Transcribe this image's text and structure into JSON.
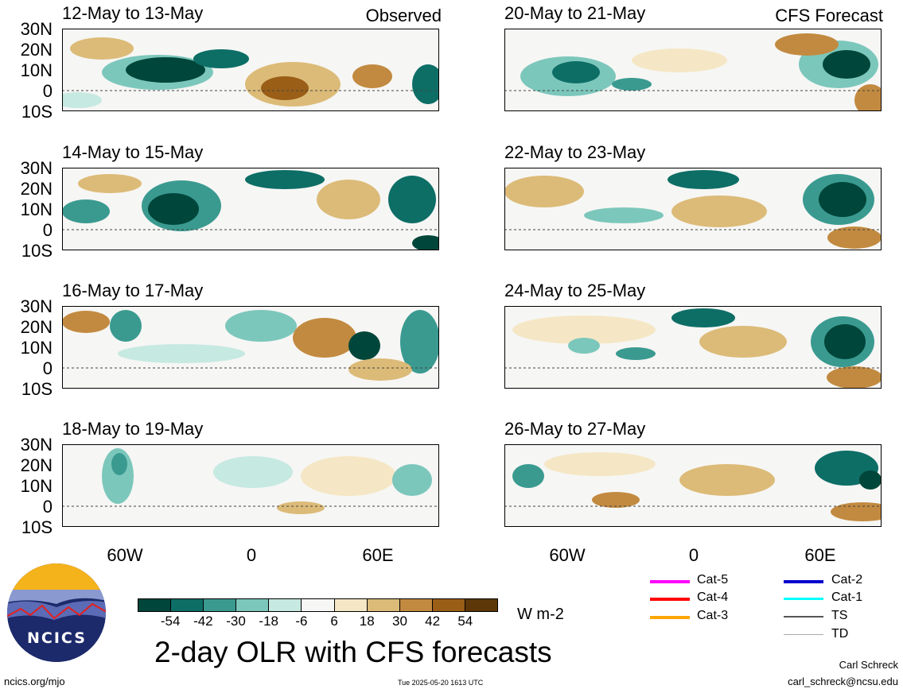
{
  "panels": [
    {
      "title": "12-May to 13-May",
      "tag": "Observed"
    },
    {
      "title": "20-May to 21-May",
      "tag": "CFS Forecast"
    },
    {
      "title": "14-May to 15-May",
      "tag": ""
    },
    {
      "title": "22-May to 23-May",
      "tag": ""
    },
    {
      "title": "16-May to 17-May",
      "tag": ""
    },
    {
      "title": "24-May to 25-May",
      "tag": ""
    },
    {
      "title": "18-May to 19-May",
      "tag": ""
    },
    {
      "title": "26-May to 27-May",
      "tag": ""
    }
  ],
  "lat_labels": [
    "30N",
    "20N",
    "10N",
    "0",
    "10S"
  ],
  "lon_labels": [
    "60W",
    "0",
    "60E"
  ],
  "colorbar": {
    "colors": [
      "#00463a",
      "#0d6e66",
      "#3a9a90",
      "#7cc7bc",
      "#c6e9e1",
      "#f6f6f4",
      "#f5e7c5",
      "#dcbb78",
      "#c28a40",
      "#9a5e17",
      "#5e3708"
    ],
    "labels": [
      "-54",
      "-42",
      "-30",
      "-18",
      "-6",
      "6",
      "18",
      "30",
      "42",
      "54"
    ],
    "units": "W m-2"
  },
  "storm_legend": [
    {
      "label": "Cat-5",
      "color": "#ff00ff"
    },
    {
      "label": "Cat-2",
      "color": "#0000cc"
    },
    {
      "label": "Cat-4",
      "color": "#ff0000"
    },
    {
      "label": "Cat-1",
      "color": "#00ffff"
    },
    {
      "label": "Cat-3",
      "color": "#ffa500"
    },
    {
      "label": "TS",
      "color": "#555555"
    },
    {
      "label": "TD",
      "color": "#aaaaaa"
    }
  ],
  "main_title": "2-day OLR with CFS forecasts",
  "logo_text": "NCICS",
  "footer": {
    "left": "ncics.org/mjo",
    "center": "Tue 2025-05-20 1613 UTC",
    "author": "Carl Schreck",
    "email": "carl_schreck@ncsu.edu"
  }
}
